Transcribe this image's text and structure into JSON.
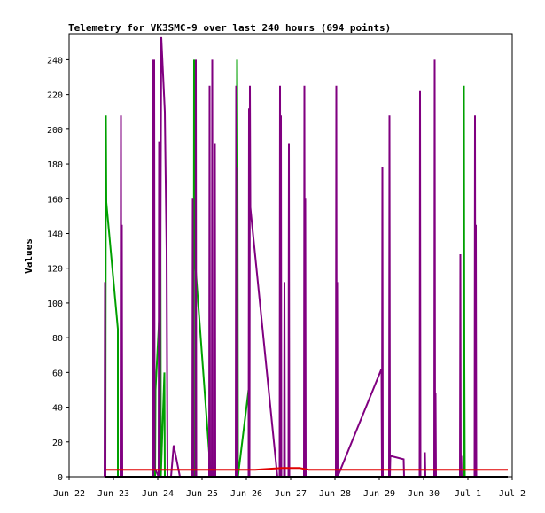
{
  "chart_data": {
    "type": "line",
    "title": "Telemetry for VK3SMC-9 over last 240 hours (694 points)",
    "xlabel": "",
    "ylabel": "Values",
    "x_ticks": [
      "Jun 22",
      "Jun 23",
      "Jun 24",
      "Jun 25",
      "Jun 26",
      "Jun 27",
      "Jun 28",
      "Jun 29",
      "Jun 30",
      "Jul 1",
      "Jul 2"
    ],
    "x_range": [
      "Jun 22",
      "Jul 2"
    ],
    "ylim": [
      0,
      255
    ],
    "y_ticks": [
      0,
      20,
      40,
      60,
      80,
      100,
      120,
      140,
      160,
      180,
      200,
      220,
      240
    ],
    "grid": false,
    "legend": "none",
    "colors": {
      "series1": "#00a000",
      "series2": "#800080",
      "series3": "#e00000",
      "axis": "#000000"
    },
    "series": [
      {
        "color": "#00a000",
        "points": [
          [
            0.82,
            0
          ],
          [
            0.83,
            208
          ],
          [
            0.84,
            158
          ],
          [
            1.1,
            85
          ],
          [
            1.1,
            0
          ],
          [
            1.94,
            0
          ],
          [
            1.95,
            50
          ],
          [
            2.05,
            100
          ],
          [
            2.06,
            180
          ],
          [
            2.07,
            0
          ],
          [
            2.15,
            60
          ],
          [
            2.16,
            0
          ],
          [
            2.81,
            0
          ],
          [
            2.82,
            240
          ],
          [
            2.83,
            160
          ],
          [
            2.84,
            125
          ],
          [
            3.2,
            0
          ],
          [
            3.78,
            0
          ],
          [
            3.79,
            240
          ],
          [
            3.8,
            180
          ],
          [
            3.81,
            0
          ],
          [
            4.05,
            50
          ],
          [
            4.06,
            0
          ],
          [
            8.9,
            0
          ],
          [
            8.91,
            225
          ],
          [
            8.92,
            65
          ],
          [
            8.93,
            0
          ]
        ]
      },
      {
        "color": "#800080",
        "points": [
          [
            0.8,
            0
          ],
          [
            0.81,
            112
          ],
          [
            0.82,
            0
          ],
          [
            1.16,
            0
          ],
          [
            1.17,
            208
          ],
          [
            1.18,
            0
          ],
          [
            1.19,
            145
          ],
          [
            1.2,
            0
          ],
          [
            1.88,
            0
          ],
          [
            1.89,
            240
          ],
          [
            1.9,
            0
          ],
          [
            1.92,
            240
          ],
          [
            1.93,
            5
          ],
          [
            2.02,
            0
          ],
          [
            2.03,
            193
          ],
          [
            2.04,
            0
          ],
          [
            2.08,
            253
          ],
          [
            2.16,
            210
          ],
          [
            2.2,
            130
          ],
          [
            2.22,
            0
          ],
          [
            2.3,
            0
          ],
          [
            2.36,
            18
          ],
          [
            2.5,
            0
          ],
          [
            2.5,
            0
          ],
          [
            2.78,
            0
          ],
          [
            2.79,
            160
          ],
          [
            2.8,
            0
          ],
          [
            2.85,
            0
          ],
          [
            2.86,
            240
          ],
          [
            2.87,
            0
          ],
          [
            3.16,
            0
          ],
          [
            3.17,
            225
          ],
          [
            3.18,
            0
          ],
          [
            3.22,
            0
          ],
          [
            3.23,
            240
          ],
          [
            3.24,
            0
          ],
          [
            3.28,
            0
          ],
          [
            3.29,
            192
          ],
          [
            3.3,
            0
          ],
          [
            3.76,
            0
          ],
          [
            3.77,
            225
          ],
          [
            3.78,
            0
          ],
          [
            3.79,
            178
          ],
          [
            3.8,
            0
          ],
          [
            4.05,
            0
          ],
          [
            4.06,
            212
          ],
          [
            4.07,
            0
          ],
          [
            4.08,
            225
          ],
          [
            4.09,
            155
          ],
          [
            4.7,
            0
          ],
          [
            4.75,
            0
          ],
          [
            4.76,
            225
          ],
          [
            4.77,
            0
          ],
          [
            4.78,
            208
          ],
          [
            4.79,
            0
          ],
          [
            4.85,
            0
          ],
          [
            4.86,
            112
          ],
          [
            4.87,
            0
          ],
          [
            4.95,
            0
          ],
          [
            4.96,
            192
          ],
          [
            4.97,
            0
          ],
          [
            5.3,
            0
          ],
          [
            5.31,
            225
          ],
          [
            5.32,
            0
          ],
          [
            5.33,
            160
          ],
          [
            5.34,
            0
          ],
          [
            6.02,
            0
          ],
          [
            6.03,
            225
          ],
          [
            6.04,
            0
          ],
          [
            6.05,
            112
          ],
          [
            6.06,
            0
          ],
          [
            7.05,
            62
          ],
          [
            7.06,
            0
          ],
          [
            7.07,
            178
          ],
          [
            7.08,
            0
          ],
          [
            7.22,
            0
          ],
          [
            7.23,
            208
          ],
          [
            7.24,
            0
          ],
          [
            7.25,
            12
          ],
          [
            7.55,
            10
          ],
          [
            7.56,
            0
          ],
          [
            7.91,
            0
          ],
          [
            7.92,
            222
          ],
          [
            7.93,
            0
          ],
          [
            8.02,
            0
          ],
          [
            8.03,
            14
          ],
          [
            8.04,
            0
          ],
          [
            8.24,
            0
          ],
          [
            8.25,
            240
          ],
          [
            8.26,
            0
          ],
          [
            8.27,
            48
          ],
          [
            8.28,
            0
          ],
          [
            8.82,
            0
          ],
          [
            8.83,
            128
          ],
          [
            8.84,
            0
          ],
          [
            8.85,
            12
          ],
          [
            8.86,
            0
          ],
          [
            9.15,
            0
          ],
          [
            9.16,
            208
          ],
          [
            9.17,
            0
          ],
          [
            9.18,
            145
          ],
          [
            9.19,
            0
          ]
        ]
      },
      {
        "color": "#e00000",
        "points": [
          [
            0.84,
            4
          ],
          [
            4.2,
            4
          ],
          [
            4.8,
            5
          ],
          [
            5.2,
            5
          ],
          [
            5.4,
            4
          ],
          [
            9.9,
            4
          ]
        ]
      },
      {
        "color": "#000000",
        "points": [
          [
            0.82,
            0
          ],
          [
            9.9,
            0
          ]
        ]
      }
    ]
  }
}
